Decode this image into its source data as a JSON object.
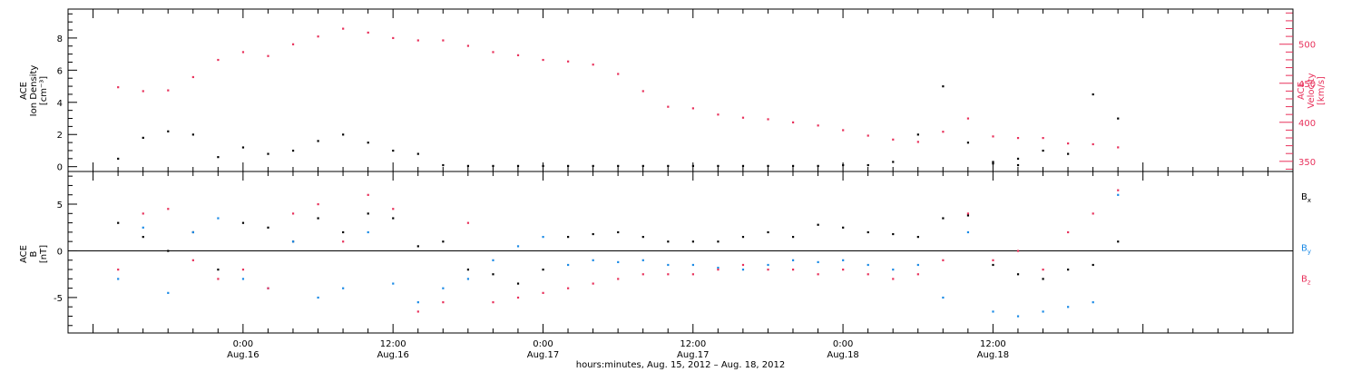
{
  "chart_data": [
    {
      "type": "scatter",
      "panel": "top",
      "left_ylabel_lines": [
        "ACE",
        "Ion Density",
        "[cm⁻³]"
      ],
      "right_ylabel_lines": [
        "ACE",
        "Velocity",
        "[km/s]"
      ],
      "left_ticks": [
        "0",
        "2",
        "4",
        "6",
        "8"
      ],
      "right_ticks": [
        "350",
        "400",
        "450",
        "500"
      ],
      "ylim_left": [
        -0.3,
        9.8
      ],
      "ylim_right": [
        337,
        545
      ],
      "grid": false,
      "series": [
        {
          "axis": "left",
          "color": "#000000",
          "x": [
            -10,
            -8,
            -6,
            -4,
            -2,
            0,
            2,
            4,
            6,
            8,
            10,
            12,
            14,
            16,
            18,
            20,
            22,
            24,
            26,
            28,
            30,
            32,
            34,
            36,
            38,
            40,
            42,
            44,
            46,
            48,
            50,
            52,
            54,
            56,
            58,
            60,
            62
          ],
          "y": [
            0.5,
            1.8,
            2.2,
            2.0,
            0.6,
            1.2,
            0.8,
            1.0,
            1.6,
            2.0,
            1.5,
            1.0,
            0.8,
            0.1,
            0.05,
            0.05,
            0.05,
            0.05,
            0.05,
            0.05,
            0.05,
            0.05,
            0.05,
            0.05,
            0.05,
            0.05,
            0.05,
            0.05,
            0.05,
            0.1,
            0.1,
            0.3,
            2.0,
            5.0,
            1.5,
            0.3,
            0.1
          ]
        },
        {
          "axis": "left",
          "color": "#000000",
          "x": [
            60,
            62,
            64,
            66,
            68,
            70
          ],
          "y": [
            0.2,
            0.5,
            1.0,
            0.8,
            4.5,
            3.0
          ]
        },
        {
          "axis": "right",
          "color": "#e8315b",
          "x": [
            -10,
            -8,
            -6,
            -4,
            -2,
            0,
            2,
            4,
            6,
            8,
            10,
            12,
            14,
            16,
            18,
            20,
            22,
            24,
            26,
            28,
            30,
            32,
            34,
            36,
            38,
            40,
            42,
            44,
            46,
            48,
            50,
            52,
            54,
            56,
            58,
            60,
            62,
            64,
            66,
            68,
            70
          ],
          "y": [
            445,
            440,
            441,
            458,
            480,
            490,
            485,
            500,
            510,
            520,
            515,
            508,
            505,
            505,
            498,
            490,
            486,
            480,
            478,
            474,
            462,
            440,
            420,
            418,
            410,
            406,
            404,
            400,
            396,
            390,
            383,
            378,
            375,
            388,
            405,
            382,
            380,
            380,
            373,
            372,
            368
          ]
        }
      ]
    },
    {
      "type": "scatter",
      "panel": "bottom",
      "left_ylabel_lines": [
        "ACE",
        "B",
        "[nT]"
      ],
      "left_ticks": [
        "-5",
        "0",
        "5"
      ],
      "ylim": [
        -8.8,
        8.5
      ],
      "grid": false,
      "legend": [
        {
          "label": "B",
          "sub": "x",
          "color": "#000000"
        },
        {
          "label": "B",
          "sub": "y",
          "color": "#1a8ae6"
        },
        {
          "label": "B",
          "sub": "z",
          "color": "#e8315b"
        }
      ],
      "series": [
        {
          "name": "Bx",
          "color": "#000000",
          "x": [
            -10,
            -8,
            -6,
            -4,
            -2,
            0,
            2,
            4,
            6,
            8,
            10,
            12,
            14,
            16,
            18,
            20,
            22,
            24,
            26,
            28,
            30,
            32,
            34,
            36,
            38,
            40,
            42,
            44,
            46,
            48,
            50,
            52,
            54,
            56,
            58,
            60,
            62,
            64,
            66,
            68,
            70
          ],
          "y": [
            3.0,
            1.5,
            0.0,
            2.0,
            -2.0,
            3.0,
            2.5,
            1.0,
            3.5,
            2.0,
            4.0,
            3.5,
            0.5,
            1.0,
            -2.0,
            -2.5,
            -3.5,
            -2.0,
            1.5,
            1.8,
            2.0,
            1.5,
            1.0,
            1.0,
            1.0,
            1.5,
            2.0,
            1.5,
            2.8,
            2.5,
            2.0,
            1.8,
            1.5,
            3.5,
            3.8,
            -1.5,
            -2.5,
            -3.0,
            -2.0,
            -1.5,
            1.0
          ]
        },
        {
          "name": "By",
          "color": "#1a8ae6",
          "x": [
            -10,
            -8,
            -6,
            -4,
            -2,
            0,
            2,
            4,
            6,
            8,
            10,
            12,
            14,
            16,
            18,
            20,
            22,
            24,
            26,
            28,
            30,
            32,
            34,
            36,
            38,
            40,
            42,
            44,
            46,
            48,
            50,
            52,
            54,
            56,
            58,
            60,
            62,
            64,
            66,
            68,
            70
          ],
          "y": [
            -3.0,
            2.5,
            -4.5,
            2.0,
            3.5,
            -3.0,
            -4.0,
            1.0,
            -5.0,
            -4.0,
            2.0,
            -3.5,
            -5.5,
            -4.0,
            -3.0,
            -1.0,
            0.5,
            1.5,
            -1.5,
            -1.0,
            -1.2,
            -1.0,
            -1.5,
            -1.5,
            -1.8,
            -2.0,
            -1.5,
            -1.0,
            -1.2,
            -1.0,
            -1.5,
            -2.0,
            -1.5,
            -5.0,
            2.0,
            -6.5,
            -7.0,
            -6.5,
            -6.0,
            -5.5,
            6.0
          ]
        },
        {
          "name": "Bz",
          "color": "#e8315b",
          "x": [
            -10,
            -8,
            -6,
            -4,
            -2,
            0,
            2,
            4,
            6,
            8,
            10,
            12,
            14,
            16,
            18,
            20,
            22,
            24,
            26,
            28,
            30,
            32,
            34,
            36,
            38,
            40,
            42,
            44,
            46,
            48,
            50,
            52,
            54,
            56,
            58,
            60,
            62,
            64,
            66,
            68,
            70
          ],
          "y": [
            -2.0,
            4.0,
            4.5,
            -1.0,
            -3.0,
            -2.0,
            -4.0,
            4.0,
            5.0,
            1.0,
            6.0,
            4.5,
            -6.5,
            -5.5,
            3.0,
            -5.5,
            -5.0,
            -4.5,
            -4.0,
            -3.5,
            -3.0,
            -2.5,
            -2.5,
            -2.5,
            -2.0,
            -1.5,
            -2.0,
            -2.0,
            -2.5,
            -2.0,
            -2.5,
            -3.0,
            -2.5,
            -1.0,
            4.0,
            -1.0,
            0.0,
            -2.0,
            2.0,
            4.0,
            6.5
          ]
        }
      ]
    }
  ],
  "x_axis": {
    "range_hours": [
      -14,
      84
    ],
    "ticks": [
      {
        "hour": 0,
        "time": "0:00",
        "date": "Aug.16"
      },
      {
        "hour": 12,
        "time": "12:00",
        "date": "Aug.16"
      },
      {
        "hour": 24,
        "time": "0:00",
        "date": "Aug.17"
      },
      {
        "hour": 36,
        "time": "12:00",
        "date": "Aug.17"
      },
      {
        "hour": 48,
        "time": "0:00",
        "date": "Aug.18"
      },
      {
        "hour": 60,
        "time": "12:00",
        "date": "Aug.18"
      }
    ],
    "label": "hours:minutes, Aug. 15, 2012 – Aug. 18, 2012"
  }
}
